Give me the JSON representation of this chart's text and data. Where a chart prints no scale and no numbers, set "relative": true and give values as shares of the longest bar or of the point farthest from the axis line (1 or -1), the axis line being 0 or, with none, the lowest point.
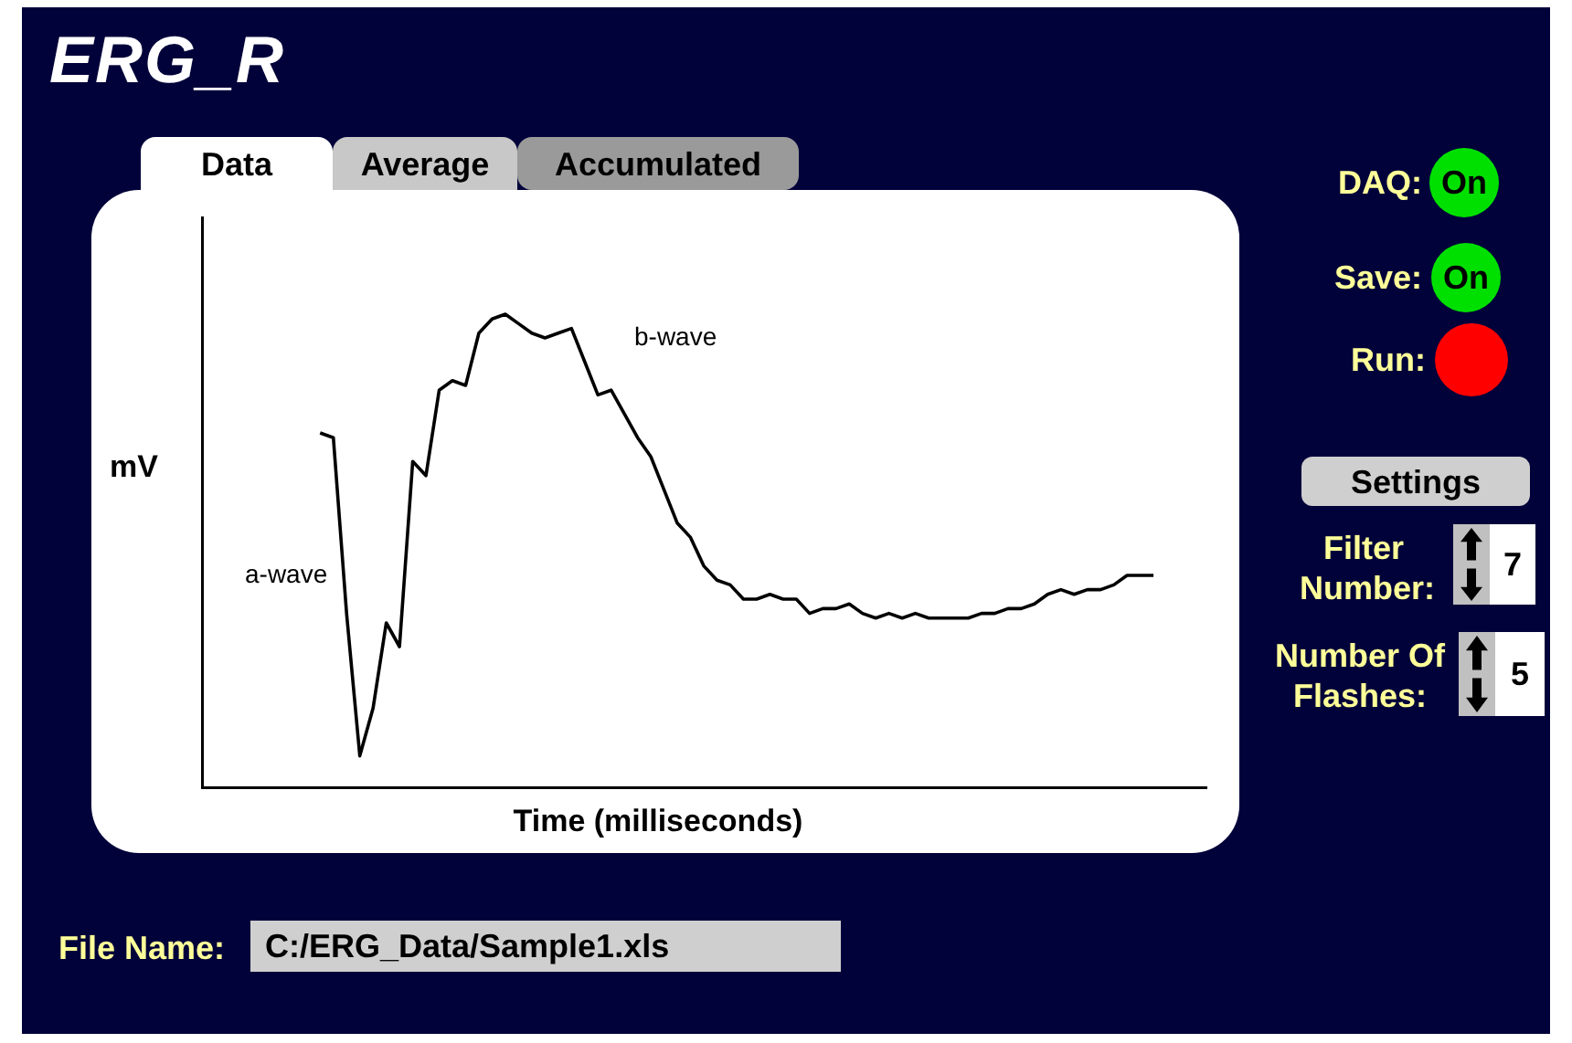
{
  "chart_data": [
    {
      "type": "line",
      "title": "ERG_R",
      "xlabel": "Time (milliseconds)",
      "ylabel": "mV",
      "relative": true,
      "color": "#000000",
      "legend": false,
      "grid": false,
      "tick_labels": false,
      "marker": "none",
      "line_style": "solid",
      "categories": [
        null,
        null,
        null,
        null,
        null,
        null,
        null,
        null,
        null,
        null,
        null,
        null,
        null,
        null,
        null,
        null,
        null,
        null,
        null,
        null,
        null,
        null,
        null,
        null,
        null,
        null,
        null,
        null,
        null,
        null,
        null,
        null,
        null,
        null,
        null,
        null,
        null,
        null,
        null,
        null,
        null,
        null,
        null,
        null,
        null,
        null,
        null,
        null,
        null,
        null,
        null,
        null,
        null,
        null,
        null,
        null,
        null,
        null,
        null,
        null,
        null,
        null,
        null,
        null,
        null,
        null,
        null,
        null,
        null,
        null,
        null,
        null,
        null,
        null,
        null,
        null,
        null
      ],
      "values": [
        null,
        null,
        null,
        null,
        null,
        null,
        null,
        null,
        null,
        0.75,
        0.74,
        0.37,
        0.07,
        0.17,
        0.35,
        0.3,
        0.69,
        0.66,
        0.84,
        0.86,
        0.85,
        0.96,
        0.99,
        1,
        0.98,
        0.96,
        0.95,
        0.96,
        0.97,
        0.9,
        0.83,
        0.84,
        0.79,
        0.74,
        0.7,
        0.63,
        0.56,
        0.53,
        0.47,
        0.44,
        0.43,
        0.4,
        0.4,
        0.41,
        0.4,
        0.4,
        0.37,
        0.38,
        0.38,
        0.39,
        0.37,
        0.36,
        0.37,
        0.36,
        0.37,
        0.36,
        0.36,
        0.36,
        0.36,
        0.37,
        0.37,
        0.38,
        0.38,
        0.39,
        0.41,
        0.42,
        0.41,
        0.42,
        0.42,
        0.43,
        0.45,
        0.45,
        0.45,
        null,
        null,
        null,
        null
      ],
      "annotations": [
        "a-wave",
        "b-wave"
      ]
    },
    {
      "type": "other",
      "annotations": [
        "Data",
        "Average",
        "Accumulated",
        "DAQ:",
        "On",
        "Save:",
        "On",
        "Run:",
        "Settings",
        "Filter Number:",
        "7",
        "Number Of Flashes:",
        "5",
        "File Name:",
        "C:/ERG_Data/Sample1.xls"
      ]
    }
  ]
}
